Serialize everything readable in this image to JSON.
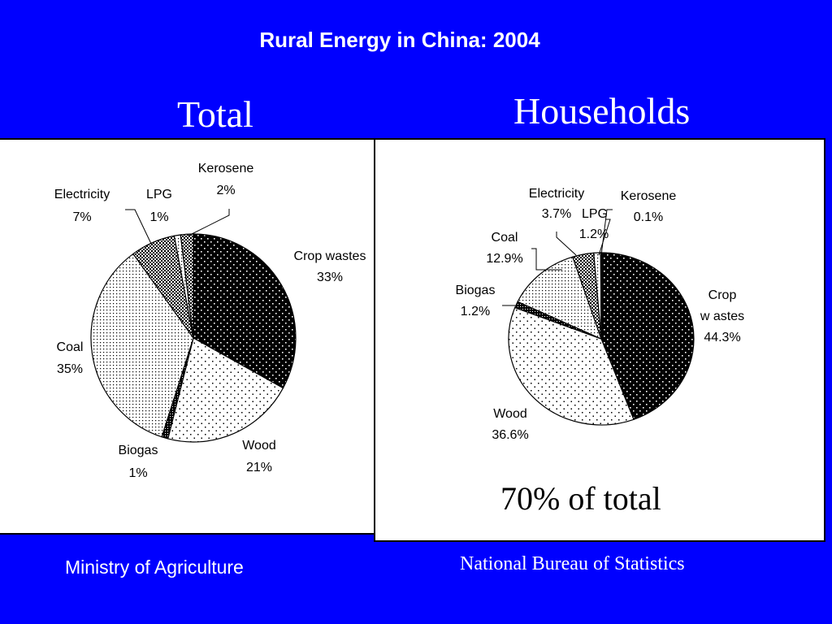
{
  "slide": {
    "title": "Rural Energy in China: 2004",
    "note": "70% of total"
  },
  "chart_data": [
    {
      "type": "pie",
      "title": "Total",
      "source": "Ministry of Agriculture",
      "slices": [
        {
          "name": "Crop wastes",
          "value": 33,
          "label": "33%",
          "pattern": "coarse-black"
        },
        {
          "name": "Wood",
          "value": 21,
          "label": "21%",
          "pattern": "fine-dots"
        },
        {
          "name": "Biogas",
          "value": 1,
          "label": "1%",
          "pattern": "dark"
        },
        {
          "name": "Coal",
          "value": 35,
          "label": "35%",
          "pattern": "dense-dots"
        },
        {
          "name": "Electricity",
          "value": 7,
          "label": "7%",
          "pattern": "checker"
        },
        {
          "name": "LPG",
          "value": 1,
          "label": "1%",
          "pattern": "dense-dots"
        },
        {
          "name": "Kerosene",
          "value": 2,
          "label": "2%",
          "pattern": "checker"
        }
      ]
    },
    {
      "type": "pie",
      "title": "Households",
      "source": "National Bureau of Statistics",
      "slices": [
        {
          "name": "Crop w astes",
          "value": 44.3,
          "label": "44.3%",
          "pattern": "coarse-black"
        },
        {
          "name": "Wood",
          "value": 36.6,
          "label": "36.6%",
          "pattern": "fine-dots"
        },
        {
          "name": "Biogas",
          "value": 1.2,
          "label": "1.2%",
          "pattern": "dark"
        },
        {
          "name": "Coal",
          "value": 12.9,
          "label": "12.9%",
          "pattern": "dense-dots"
        },
        {
          "name": "Electricity",
          "value": 3.7,
          "label": "3.7%",
          "pattern": "checker"
        },
        {
          "name": "LPG",
          "value": 1.2,
          "label": "1.2%",
          "pattern": "dense-dots"
        },
        {
          "name": "Kerosene",
          "value": 0.1,
          "label": "0.1%",
          "pattern": "checker"
        }
      ]
    }
  ]
}
